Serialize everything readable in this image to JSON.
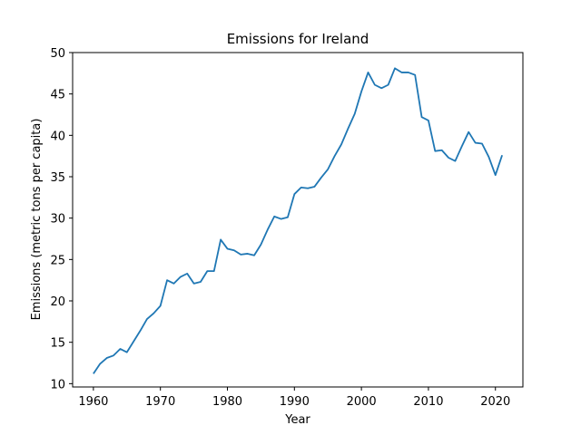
{
  "chart_data": {
    "type": "line",
    "title": "Emissions for Ireland",
    "xlabel": "Year",
    "ylabel": "Emissions (metric tons per capita)",
    "xlim": [
      1956.9,
      2024.1
    ],
    "ylim": [
      9.6,
      50
    ],
    "xticks": [
      1960,
      1970,
      1980,
      1990,
      2000,
      2010,
      2020
    ],
    "yticks": [
      10,
      15,
      20,
      25,
      30,
      35,
      40,
      45,
      50
    ],
    "grid": false,
    "line_color": "#1f77b4",
    "series": [
      {
        "x": [
          1960,
          1961,
          1962,
          1963,
          1964,
          1965,
          1966,
          1967,
          1968,
          1969,
          1970,
          1971,
          1972,
          1973,
          1974,
          1975,
          1976,
          1977,
          1978,
          1979,
          1980,
          1981,
          1982,
          1983,
          1984,
          1985,
          1986,
          1987,
          1988,
          1989,
          1990,
          1991,
          1992,
          1993,
          1994,
          1995,
          1996,
          1997,
          1998,
          1999,
          2000,
          2001,
          2002,
          2003,
          2004,
          2005,
          2006,
          2007,
          2008,
          2009,
          2010,
          2011,
          2012,
          2013,
          2014,
          2015,
          2016,
          2017,
          2018,
          2019,
          2020,
          2021
        ],
        "values": [
          11.2,
          12.4,
          13.1,
          13.4,
          14.2,
          13.8,
          15.1,
          16.4,
          17.8,
          18.5,
          19.4,
          22.5,
          22.1,
          22.9,
          23.3,
          22.1,
          22.3,
          23.6,
          23.6,
          27.4,
          26.3,
          26.1,
          25.6,
          25.7,
          25.5,
          26.8,
          28.6,
          30.2,
          29.9,
          30.1,
          32.9,
          33.7,
          33.6,
          33.8,
          34.9,
          35.9,
          37.5,
          38.9,
          40.8,
          42.6,
          45.3,
          47.6,
          46.1,
          45.7,
          46.1,
          48.1,
          47.6,
          47.6,
          47.3,
          42.2,
          41.8,
          38.1,
          38.2,
          37.3,
          36.9,
          38.7,
          40.4,
          39.1,
          39.0,
          37.4,
          35.2,
          37.6
        ]
      }
    ]
  }
}
